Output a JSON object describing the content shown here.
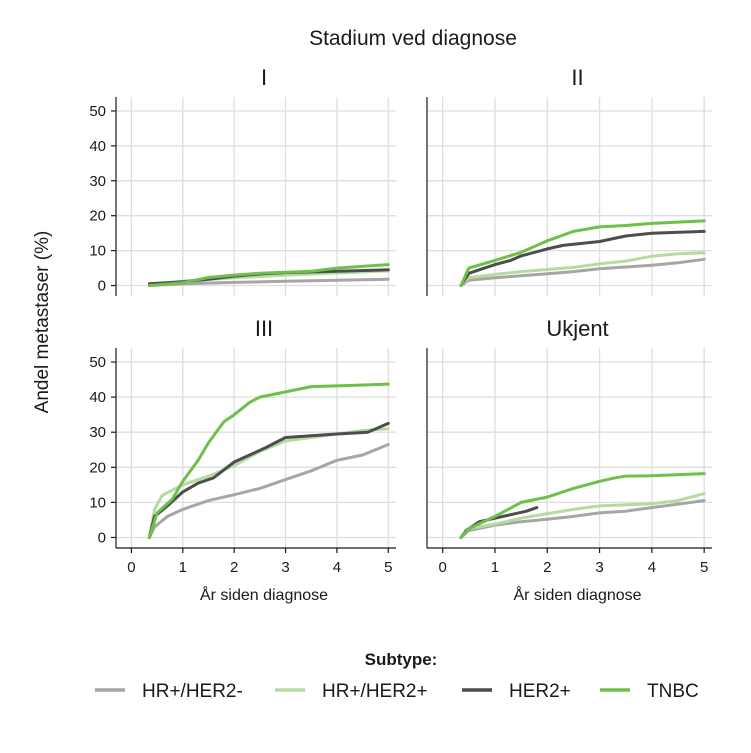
{
  "chart_data": {
    "type": "line",
    "facet_title": "Stadium ved diagnose",
    "xlabel": "År siden diagnose",
    "ylabel": "Andel metastaser (%)",
    "xlim": [
      -0.3,
      5.15
    ],
    "ylim": [
      -3,
      54
    ],
    "x_ticks": [
      0,
      1,
      2,
      3,
      4,
      5
    ],
    "y_ticks": [
      0,
      10,
      20,
      30,
      40,
      50
    ],
    "grid": true,
    "legend": {
      "title": "Subtype:",
      "position": "bottom",
      "entries": [
        {
          "name": "HR+/HER2-",
          "color": "#a6a6a6"
        },
        {
          "name": "HR+/HER2+",
          "color": "#b5dba0"
        },
        {
          "name": "HER2+",
          "color": "#4d4d4d"
        },
        {
          "name": "TNBC",
          "color": "#6fbf4a"
        }
      ]
    },
    "panels": [
      {
        "title": "I",
        "series": [
          {
            "name": "HR+/HER2-",
            "points": [
              [
                0.35,
                0
              ],
              [
                1,
                0.5
              ],
              [
                2,
                0.9
              ],
              [
                3,
                1.2
              ],
              [
                4,
                1.5
              ],
              [
                5,
                1.8
              ]
            ]
          },
          {
            "name": "HR+/HER2+",
            "points": [
              [
                0.35,
                0
              ],
              [
                1,
                1.2
              ],
              [
                2,
                2.2
              ],
              [
                3,
                3.0
              ],
              [
                4,
                3.6
              ],
              [
                5,
                4.2
              ]
            ]
          },
          {
            "name": "HER2+",
            "points": [
              [
                0.35,
                0.5
              ],
              [
                1,
                1.1
              ],
              [
                1.5,
                1.8
              ],
              [
                2,
                2.7
              ],
              [
                2.5,
                3.3
              ],
              [
                3,
                3.7
              ],
              [
                4,
                4.1
              ],
              [
                5,
                4.5
              ]
            ]
          },
          {
            "name": "TNBC",
            "points": [
              [
                0.35,
                0
              ],
              [
                1,
                0.8
              ],
              [
                1.5,
                2.3
              ],
              [
                2,
                3.0
              ],
              [
                2.5,
                3.5
              ],
              [
                3,
                3.8
              ],
              [
                3.5,
                4.1
              ],
              [
                4,
                5.0
              ],
              [
                5,
                6.0
              ]
            ]
          }
        ]
      },
      {
        "title": "II",
        "series": [
          {
            "name": "HR+/HER2-",
            "points": [
              [
                0.35,
                0
              ],
              [
                0.5,
                1.5
              ],
              [
                1,
                2.2
              ],
              [
                1.5,
                2.8
              ],
              [
                2,
                3.4
              ],
              [
                2.5,
                4.0
              ],
              [
                3,
                4.8
              ],
              [
                3.5,
                5.3
              ],
              [
                4,
                5.8
              ],
              [
                4.5,
                6.5
              ],
              [
                5,
                7.5
              ]
            ]
          },
          {
            "name": "HR+/HER2+",
            "points": [
              [
                0.35,
                0
              ],
              [
                0.5,
                2.2
              ],
              [
                1,
                3.2
              ],
              [
                1.5,
                4.0
              ],
              [
                2,
                4.6
              ],
              [
                2.5,
                5.2
              ],
              [
                3,
                6.2
              ],
              [
                3.5,
                7.0
              ],
              [
                4,
                8.4
              ],
              [
                4.5,
                9.1
              ],
              [
                5,
                9.4
              ]
            ]
          },
          {
            "name": "HER2+",
            "points": [
              [
                0.35,
                0
              ],
              [
                0.5,
                3.5
              ],
              [
                0.8,
                5.0
              ],
              [
                1,
                6.0
              ],
              [
                1.3,
                7.2
              ],
              [
                1.5,
                8.5
              ],
              [
                2,
                10.5
              ],
              [
                2.3,
                11.5
              ],
              [
                3,
                12.6
              ],
              [
                3.5,
                14.2
              ],
              [
                4,
                15.0
              ],
              [
                5,
                15.5
              ]
            ]
          },
          {
            "name": "TNBC",
            "points": [
              [
                0.35,
                0
              ],
              [
                0.5,
                5.0
              ],
              [
                0.8,
                6.3
              ],
              [
                1,
                7.2
              ],
              [
                1.5,
                9.5
              ],
              [
                2,
                12.8
              ],
              [
                2.5,
                15.5
              ],
              [
                3,
                16.8
              ],
              [
                3.5,
                17.2
              ],
              [
                4,
                17.8
              ],
              [
                5,
                18.5
              ]
            ]
          }
        ]
      },
      {
        "title": "III",
        "series": [
          {
            "name": "HR+/HER2-",
            "points": [
              [
                0.35,
                0
              ],
              [
                0.45,
                3.0
              ],
              [
                0.7,
                6.0
              ],
              [
                1,
                8.0
              ],
              [
                1.3,
                9.5
              ],
              [
                1.5,
                10.5
              ],
              [
                2,
                12.2
              ],
              [
                2.5,
                14.0
              ],
              [
                3,
                16.5
              ],
              [
                3.3,
                18.0
              ],
              [
                3.5,
                19.0
              ],
              [
                4,
                22.0
              ],
              [
                4.5,
                23.5
              ],
              [
                5,
                26.5
              ]
            ]
          },
          {
            "name": "HR+/HER2+",
            "points": [
              [
                0.35,
                0
              ],
              [
                0.45,
                8.0
              ],
              [
                0.6,
                12.0
              ],
              [
                0.8,
                13.5
              ],
              [
                1,
                15.0
              ],
              [
                1.3,
                16.5
              ],
              [
                1.5,
                17.5
              ],
              [
                2,
                20.5
              ],
              [
                2.5,
                24.5
              ],
              [
                3,
                27.5
              ],
              [
                3.5,
                28.5
              ],
              [
                4,
                29.5
              ],
              [
                4.5,
                30.5
              ],
              [
                5,
                31.0
              ]
            ]
          },
          {
            "name": "HER2+",
            "points": [
              [
                0.35,
                0
              ],
              [
                0.45,
                6.0
              ],
              [
                0.7,
                9.0
              ],
              [
                1,
                13.0
              ],
              [
                1.3,
                15.5
              ],
              [
                1.6,
                17.0
              ],
              [
                2,
                21.5
              ],
              [
                2.3,
                23.5
              ],
              [
                2.6,
                25.5
              ],
              [
                3,
                28.5
              ],
              [
                3.5,
                29.0
              ],
              [
                4,
                29.5
              ],
              [
                4.6,
                30.0
              ],
              [
                5,
                32.5
              ]
            ]
          },
          {
            "name": "TNBC",
            "points": [
              [
                0.35,
                0
              ],
              [
                0.5,
                7.0
              ],
              [
                0.8,
                11.0
              ],
              [
                1,
                16.0
              ],
              [
                1.3,
                22.0
              ],
              [
                1.5,
                27.0
              ],
              [
                1.8,
                33.0
              ],
              [
                2,
                35.0
              ],
              [
                2.3,
                38.5
              ],
              [
                2.5,
                40.0
              ],
              [
                3,
                41.5
              ],
              [
                3.5,
                43.0
              ],
              [
                4,
                43.2
              ],
              [
                5,
                43.7
              ]
            ]
          }
        ]
      },
      {
        "title": "Ukjent",
        "series": [
          {
            "name": "HR+/HER2-",
            "points": [
              [
                0.35,
                0
              ],
              [
                0.5,
                2.0
              ],
              [
                1,
                3.5
              ],
              [
                1.5,
                4.5
              ],
              [
                2,
                5.2
              ],
              [
                2.5,
                6.0
              ],
              [
                3,
                7.0
              ],
              [
                3.5,
                7.5
              ],
              [
                4,
                8.5
              ],
              [
                4.5,
                9.5
              ],
              [
                5,
                10.5
              ]
            ]
          },
          {
            "name": "HR+/HER2+",
            "points": [
              [
                0.35,
                0
              ],
              [
                0.5,
                2.5
              ],
              [
                1,
                3.8
              ],
              [
                1.5,
                5.5
              ],
              [
                2,
                6.8
              ],
              [
                2.5,
                8.0
              ],
              [
                3,
                9.0
              ],
              [
                3.5,
                9.3
              ],
              [
                4,
                9.6
              ],
              [
                4.5,
                10.5
              ],
              [
                5,
                12.5
              ]
            ]
          },
          {
            "name": "HER2+",
            "points": [
              [
                0.35,
                0
              ],
              [
                0.45,
                2.0
              ],
              [
                0.7,
                4.5
              ],
              [
                1,
                5.5
              ],
              [
                1.3,
                6.5
              ],
              [
                1.6,
                7.5
              ],
              [
                1.8,
                8.5
              ]
            ]
          },
          {
            "name": "TNBC",
            "points": [
              [
                0.35,
                0
              ],
              [
                0.5,
                2.5
              ],
              [
                1,
                6.0
              ],
              [
                1.5,
                10.0
              ],
              [
                2,
                11.5
              ],
              [
                2.5,
                14.0
              ],
              [
                3,
                16.0
              ],
              [
                3.3,
                17.0
              ],
              [
                3.5,
                17.5
              ],
              [
                4,
                17.6
              ],
              [
                5,
                18.2
              ]
            ]
          }
        ]
      }
    ]
  }
}
